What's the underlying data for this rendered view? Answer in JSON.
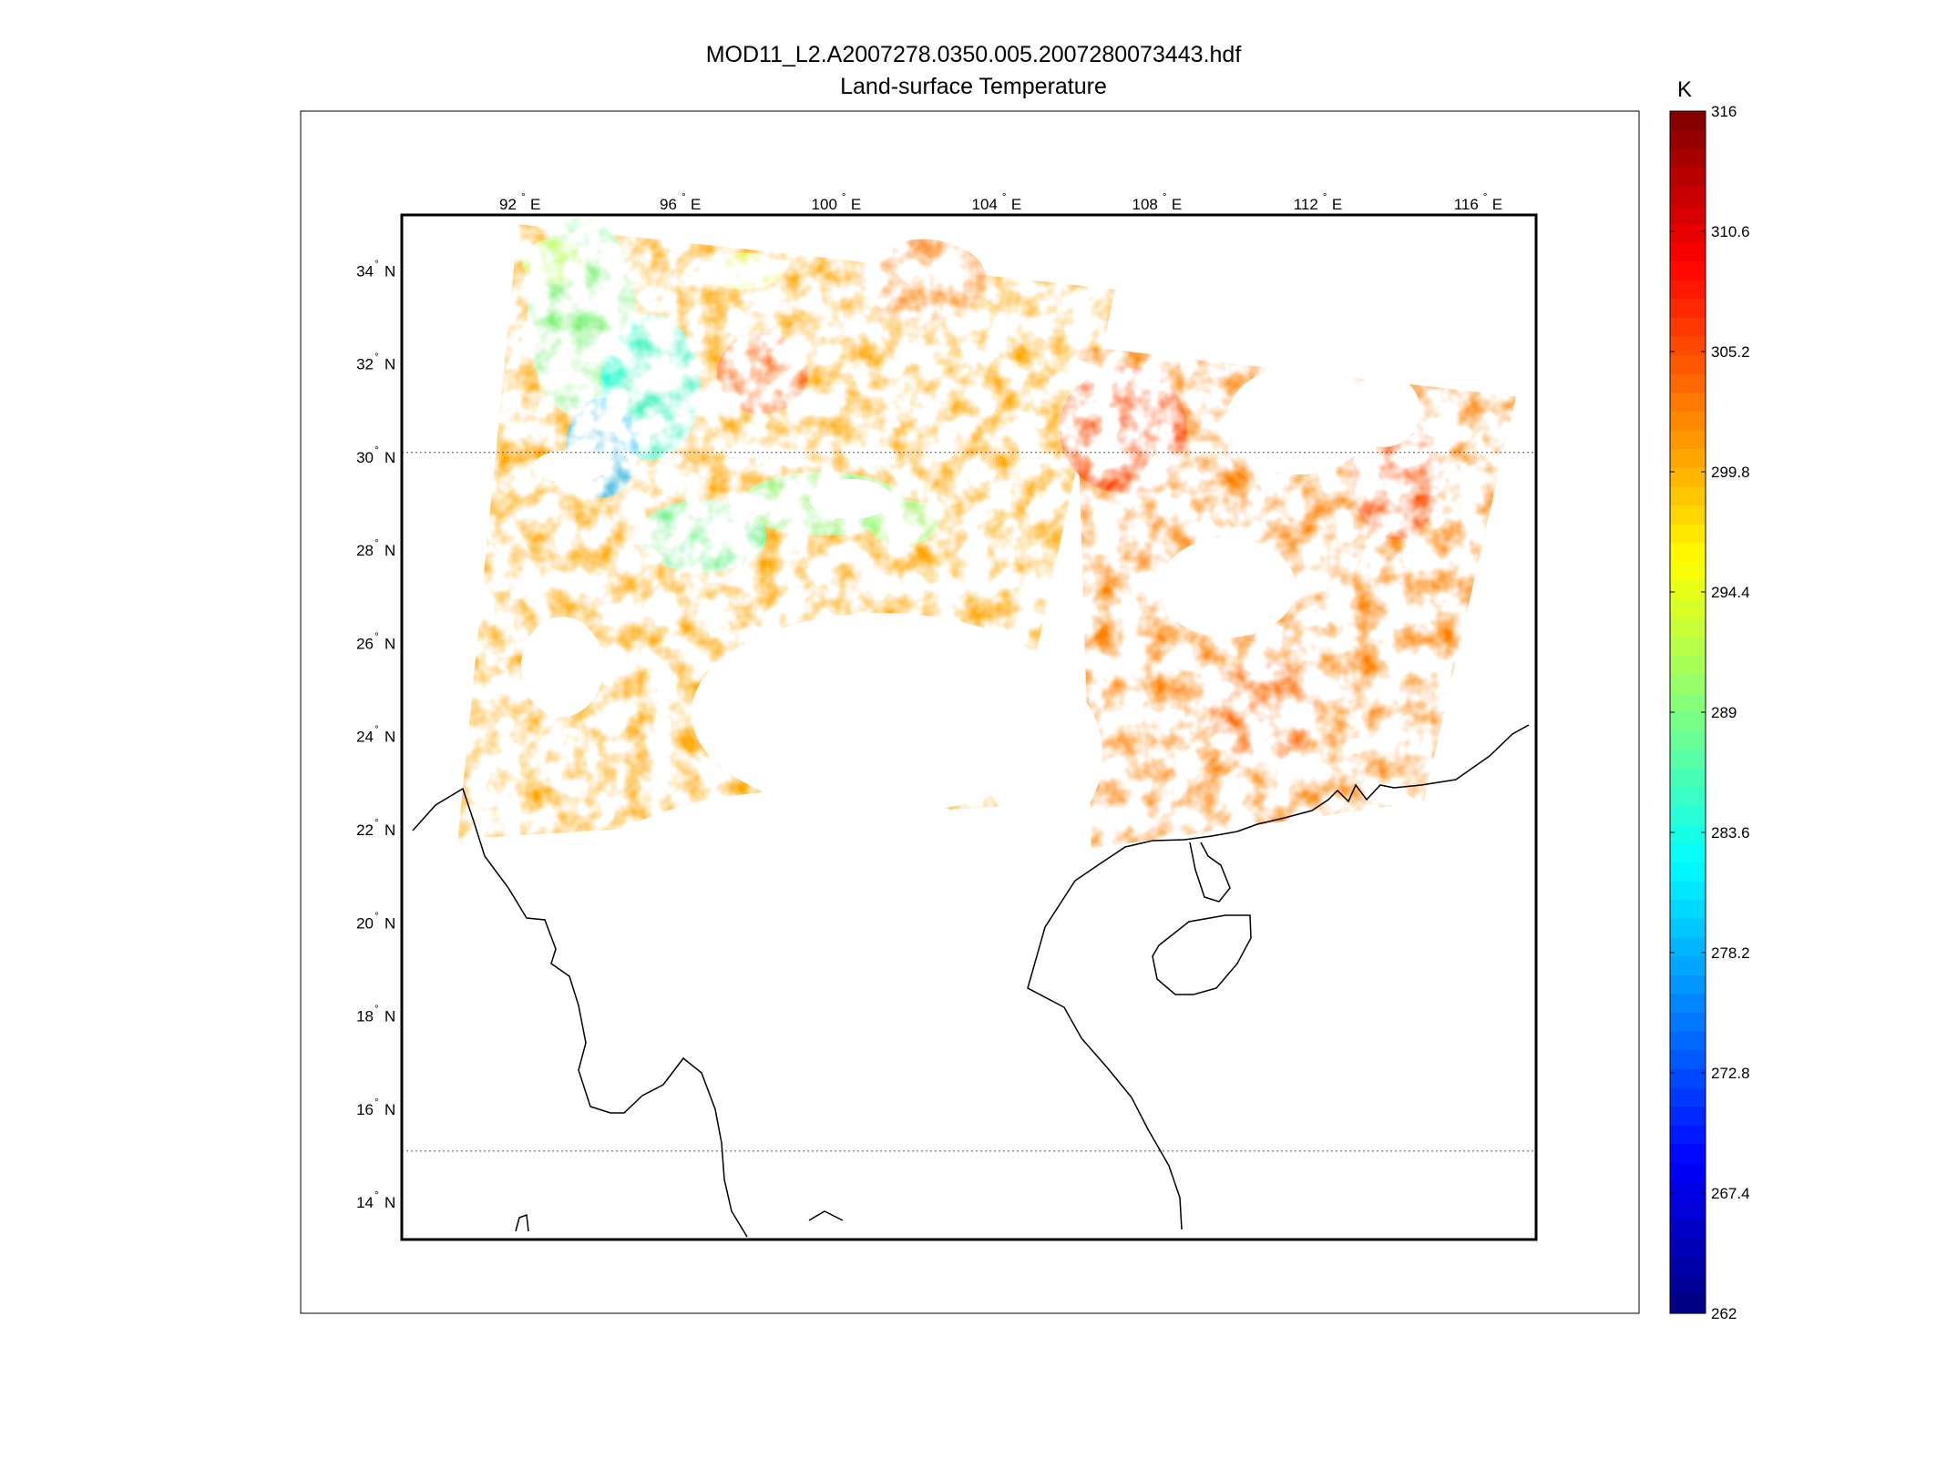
{
  "title": {
    "line1": "MOD11_L2.A2007278.0350.005.2007280073443.hdf",
    "line2": "Land-surface Temperature"
  },
  "map": {
    "projection": "lat-lon",
    "lon_range": [
      89,
      117.3
    ],
    "lat_range": [
      13.2,
      35.2
    ],
    "lon_ticks": [
      {
        "value": 92,
        "label": "92",
        "suffix": "E"
      },
      {
        "value": 96,
        "label": "96",
        "suffix": "E"
      },
      {
        "value": 100,
        "label": "100",
        "suffix": "E"
      },
      {
        "value": 104,
        "label": "104",
        "suffix": "E"
      },
      {
        "value": 108,
        "label": "108",
        "suffix": "E"
      },
      {
        "value": 112,
        "label": "112",
        "suffix": "E"
      },
      {
        "value": 116,
        "label": "116",
        "suffix": "E"
      }
    ],
    "lat_ticks": [
      {
        "value": 34,
        "label": "34",
        "suffix": "N"
      },
      {
        "value": 32,
        "label": "32",
        "suffix": "N"
      },
      {
        "value": 30,
        "label": "30",
        "suffix": "N"
      },
      {
        "value": 28,
        "label": "28",
        "suffix": "N"
      },
      {
        "value": 26,
        "label": "26",
        "suffix": "N"
      },
      {
        "value": 24,
        "label": "24",
        "suffix": "N"
      },
      {
        "value": 22,
        "label": "22",
        "suffix": "N"
      },
      {
        "value": 20,
        "label": "20",
        "suffix": "N"
      },
      {
        "value": 18,
        "label": "18",
        "suffix": "N"
      },
      {
        "value": 16,
        "label": "16",
        "suffix": "N"
      },
      {
        "value": 14,
        "label": "14",
        "suffix": "N"
      }
    ],
    "dotted_parallels": [
      30.1,
      15.1
    ],
    "swaths": [
      {
        "name": "western-swath",
        "corners": [
          [
            91.9,
            35.0
          ],
          [
            106.8,
            33.6
          ],
          [
            104.0,
            22.5
          ],
          [
            90.4,
            21.8
          ]
        ]
      },
      {
        "name": "eastern-swath",
        "corners": [
          [
            105.8,
            32.4
          ],
          [
            116.8,
            31.3
          ],
          [
            114.5,
            22.6
          ],
          [
            106.2,
            21.6
          ]
        ]
      }
    ],
    "no_data_color": "#ffffff"
  },
  "colorbar": {
    "unit": "K",
    "min": 262,
    "max": 316,
    "ticks": [
      "316",
      "310.6",
      "305.2",
      "299.8",
      "294.4",
      "289",
      "283.6",
      "278.2",
      "272.8",
      "267.4",
      "262"
    ],
    "colormap": "jet"
  }
}
